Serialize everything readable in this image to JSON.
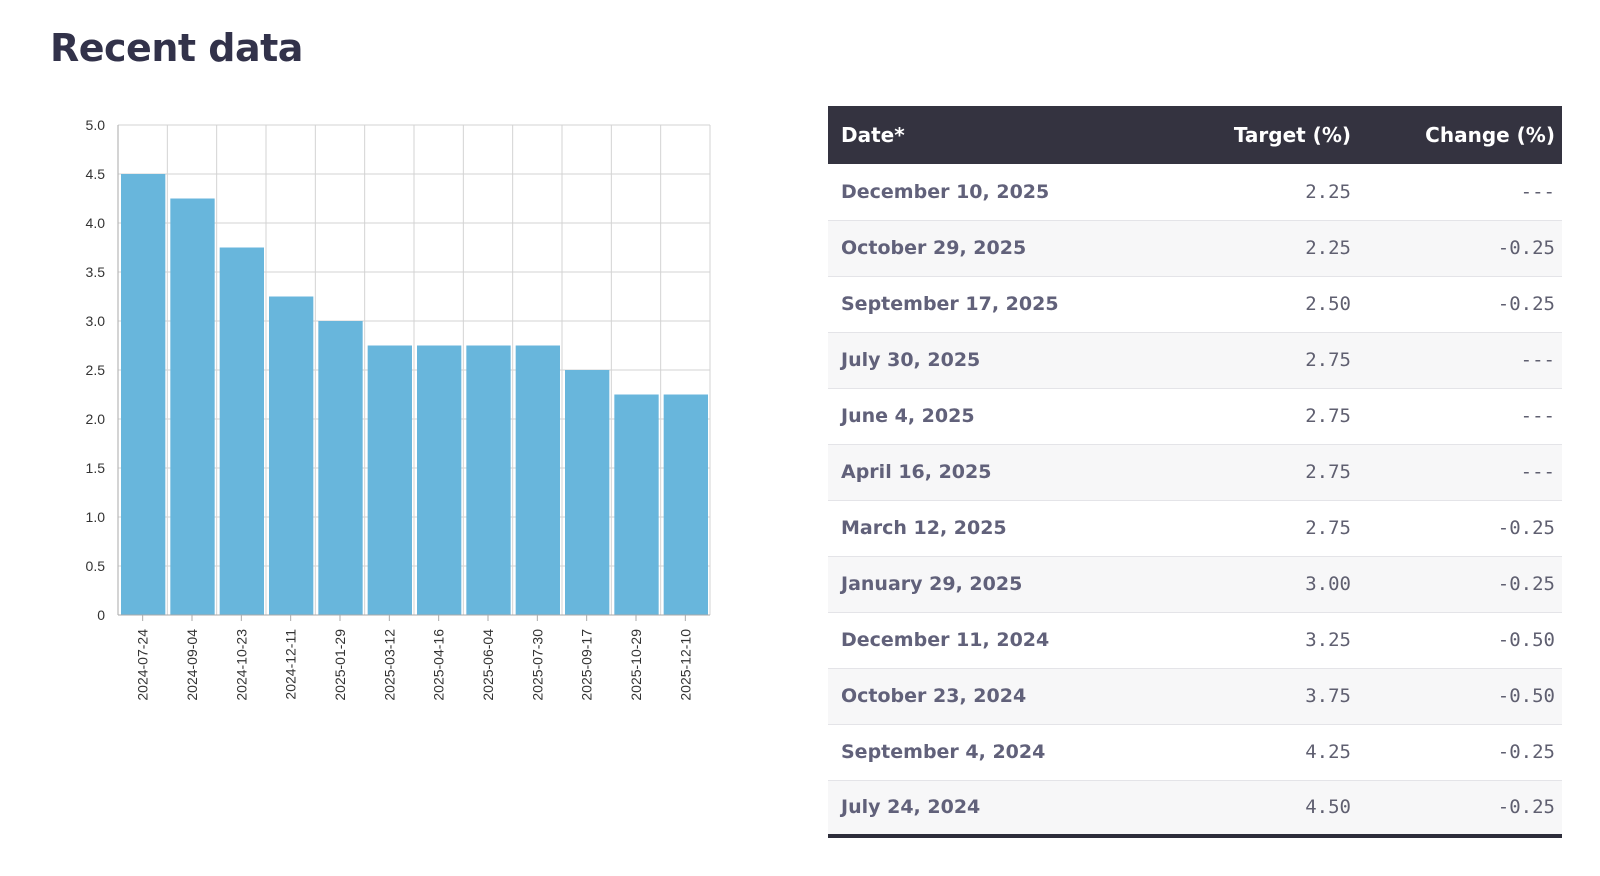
{
  "page": {
    "title": "Recent data"
  },
  "colors": {
    "bar": "#68b6dc",
    "header_bg": "#343340",
    "title": "#32324a"
  },
  "chart_data": {
    "type": "bar",
    "categories": [
      "2024-07-24",
      "2024-09-04",
      "2024-10-23",
      "2024-12-11",
      "2025-01-29",
      "2025-03-12",
      "2025-04-16",
      "2025-06-04",
      "2025-07-30",
      "2025-09-17",
      "2025-10-29",
      "2025-12-10"
    ],
    "values": [
      4.5,
      4.25,
      3.75,
      3.25,
      3.0,
      2.75,
      2.75,
      2.75,
      2.75,
      2.5,
      2.25,
      2.25
    ],
    "y_ticks": [
      "0",
      "0.5",
      "1.0",
      "1.5",
      "2.0",
      "2.5",
      "3.0",
      "3.5",
      "4.0",
      "4.5",
      "5.0"
    ],
    "ylim": [
      0,
      5
    ],
    "grid": true,
    "title": "",
    "xlabel": "",
    "ylabel": ""
  },
  "table": {
    "headers": [
      "Date*",
      "Target (%)",
      "Change (%)"
    ],
    "rows": [
      {
        "date": "December 10, 2025",
        "target": "2.25",
        "change": "---"
      },
      {
        "date": "October 29, 2025",
        "target": "2.25",
        "change": "-0.25"
      },
      {
        "date": "September 17, 2025",
        "target": "2.50",
        "change": "-0.25"
      },
      {
        "date": "July 30, 2025",
        "target": "2.75",
        "change": "---"
      },
      {
        "date": "June 4, 2025",
        "target": "2.75",
        "change": "---"
      },
      {
        "date": "April 16, 2025",
        "target": "2.75",
        "change": "---"
      },
      {
        "date": "March 12, 2025",
        "target": "2.75",
        "change": "-0.25"
      },
      {
        "date": "January 29, 2025",
        "target": "3.00",
        "change": "-0.25"
      },
      {
        "date": "December 11, 2024",
        "target": "3.25",
        "change": "-0.50"
      },
      {
        "date": "October 23, 2024",
        "target": "3.75",
        "change": "-0.50"
      },
      {
        "date": "September 4, 2024",
        "target": "4.25",
        "change": "-0.25"
      },
      {
        "date": "July 24, 2024",
        "target": "4.50",
        "change": "-0.25"
      }
    ]
  }
}
